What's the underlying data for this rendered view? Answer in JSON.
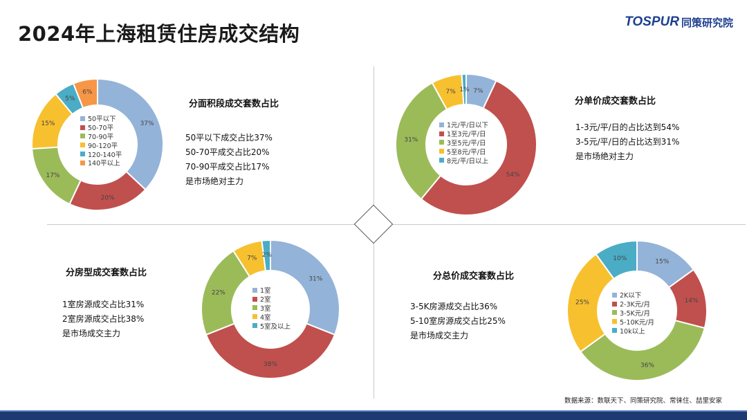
{
  "page": {
    "title": "2024年上海租赁住房成交结构"
  },
  "logo": {
    "brand": "TOSPUR",
    "name_cn": "同策研究院"
  },
  "source": "数据来源：数联天下、同策研究院、常徕住、喆里安家",
  "colors": {
    "blue": "#94b3d8",
    "red": "#c0504d",
    "green": "#9bbb59",
    "yellow": "#f7c02f",
    "teal": "#4bacc6",
    "orange": "#f79646"
  },
  "panels": [
    {
      "title": "分面积段成交套数占比",
      "notes": [
        "50平以下成交占比37%",
        "50-70平成交占比20%",
        "70-90平成交占比17%",
        "是市场绝对主力"
      ]
    },
    {
      "title": "分单价成交套数占比",
      "notes": [
        "1-3元/平/日的占比达到54%",
        "3-5元/平/日的占比达到31%",
        "是市场绝对主力"
      ]
    },
    {
      "title": "分房型成交套数占比",
      "notes": [
        "1室房源成交占比31%",
        "2室房源成交占比38%",
        "是市场成交主力"
      ]
    },
    {
      "title": "分总价成交套数占比",
      "notes": [
        "3-5K房源成交占比36%",
        "5-10室房源成交占比25%",
        "是市场成交主力"
      ]
    }
  ],
  "chart_data": [
    {
      "type": "pie",
      "categories": [
        "50平以下",
        "50-70平",
        "70-90平",
        "90-120平",
        "120-140平",
        "140平以上"
      ],
      "values": [
        37,
        20,
        17,
        15,
        5,
        6
      ],
      "labels": [
        "37%",
        "20%",
        "17%",
        "15%",
        "5%",
        "6%"
      ],
      "colors": [
        "#94b3d8",
        "#c0504d",
        "#9bbb59",
        "#f7c02f",
        "#4bacc6",
        "#f79646"
      ]
    },
    {
      "type": "pie",
      "categories": [
        "1元/平/日以下",
        "1至3元/平/日",
        "3至5元/平/日",
        "5至8元/平/日",
        "8元/平/日以上"
      ],
      "values": [
        7,
        54,
        31,
        7,
        1
      ],
      "labels": [
        "7%",
        "54%",
        "31%",
        "7%",
        "1%"
      ],
      "colors": [
        "#94b3d8",
        "#c0504d",
        "#9bbb59",
        "#f7c02f",
        "#4bacc6"
      ]
    },
    {
      "type": "pie",
      "categories": [
        "1室",
        "2室",
        "3室",
        "4室",
        "5室及以上"
      ],
      "values": [
        31,
        38,
        22,
        7,
        2
      ],
      "labels": [
        "31%",
        "38%",
        "22%",
        "7%",
        "2%"
      ],
      "colors": [
        "#94b3d8",
        "#c0504d",
        "#9bbb59",
        "#f7c02f",
        "#4bacc6"
      ]
    },
    {
      "type": "pie",
      "categories": [
        "2K以下",
        "2-3K元/月",
        "3-5K元/月",
        "5-10K元/月",
        "10k以上"
      ],
      "values": [
        15,
        14,
        36,
        25,
        10
      ],
      "labels": [
        "15%",
        "14%",
        "36%",
        "25%",
        "10%"
      ],
      "colors": [
        "#94b3d8",
        "#c0504d",
        "#9bbb59",
        "#f7c02f",
        "#4bacc6"
      ]
    }
  ]
}
